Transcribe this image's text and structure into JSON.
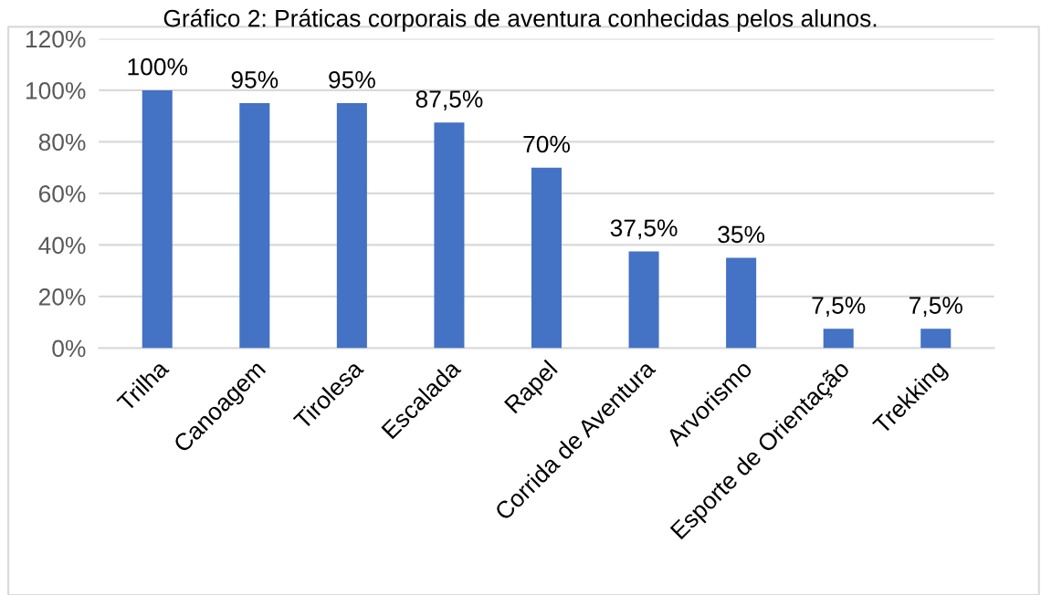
{
  "chart_data": {
    "type": "bar",
    "title": "Gráfico 2: Práticas corporais de aventura conhecidas pelos alunos.",
    "categories": [
      "Trilha",
      "Canoagem",
      "Tirolesa",
      "Escalada",
      "Rapel",
      "Corrida de Aventura",
      "Arvorismo",
      "Esporte de Orientação",
      "Trekking"
    ],
    "values": [
      100,
      95,
      95,
      87.5,
      70,
      37.5,
      35,
      7.5,
      7.5
    ],
    "value_labels": [
      "100%",
      "95%",
      "95%",
      "87,5%",
      "70%",
      "37,5%",
      "35%",
      "7,5%",
      "7,5%"
    ],
    "color": "#4472c4",
    "ylim": [
      0,
      120
    ],
    "yticks": [
      {
        "value": 0,
        "label": "0%"
      },
      {
        "value": 20,
        "label": "20%"
      },
      {
        "value": 40,
        "label": "40%"
      },
      {
        "value": 60,
        "label": "60%"
      },
      {
        "value": 80,
        "label": "80%"
      },
      {
        "value": 100,
        "label": "100%"
      },
      {
        "value": 120,
        "label": "120%"
      }
    ],
    "grid": "y",
    "legend": false
  }
}
